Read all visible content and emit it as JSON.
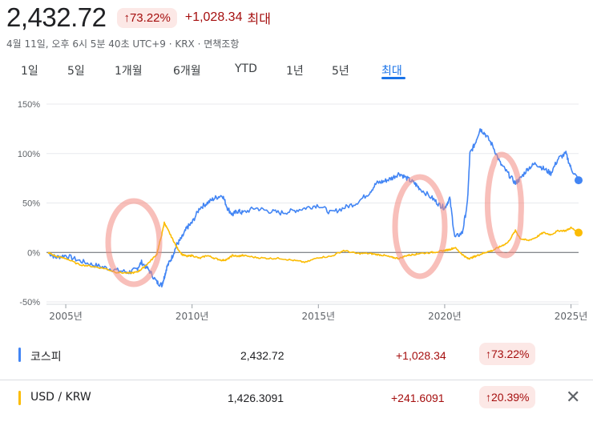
{
  "header": {
    "price": "2,432.72",
    "pct_change": "↑73.22%",
    "abs_change": "+1,028.34",
    "period_label": "최대",
    "subtitle": "4월 11일, 오후 6시 5분 40초 UTC+9 · KRX · 면책조항"
  },
  "tabs": [
    "1일",
    "5일",
    "1개월",
    "6개월",
    "YTD",
    "1년",
    "5년",
    "최대"
  ],
  "active_tab": "최대",
  "colors": {
    "kospi": "#4285f4",
    "usdkrw": "#fbbc04",
    "up": "#a50e0e",
    "accent": "#1a73e8",
    "circle": "#f28b82"
  },
  "chart_data": {
    "type": "line",
    "y_unit": "percent",
    "ylim": [
      -50,
      150
    ],
    "y_ticks": [
      "150%",
      "100%",
      "50%",
      "0%",
      "-50%"
    ],
    "xlim": [
      2004.3,
      2025.3
    ],
    "x_ticks": [
      "2005년",
      "2010년",
      "2015년",
      "2020년",
      "2025년"
    ],
    "grid": true,
    "series": [
      {
        "name": "코스피",
        "color": "#4285f4",
        "x": [
          2004.3,
          2004.6,
          2005.0,
          2005.5,
          2006.0,
          2006.5,
          2007.0,
          2007.5,
          2007.8,
          2008.0,
          2008.3,
          2008.6,
          2008.8,
          2008.9,
          2009.0,
          2009.2,
          2009.4,
          2009.6,
          2009.8,
          2010.0,
          2010.3,
          2010.6,
          2010.9,
          2011.2,
          2011.4,
          2011.6,
          2011.8,
          2012.0,
          2012.5,
          2013.0,
          2013.5,
          2014.0,
          2014.5,
          2015.0,
          2015.5,
          2016.0,
          2016.5,
          2017.0,
          2017.3,
          2017.6,
          2017.9,
          2018.2,
          2018.5,
          2018.8,
          2019.0,
          2019.5,
          2019.8,
          2020.0,
          2020.2,
          2020.4,
          2020.7,
          2020.9,
          2021.0,
          2021.2,
          2021.4,
          2021.6,
          2021.9,
          2022.2,
          2022.5,
          2022.8,
          2023.0,
          2023.3,
          2023.6,
          2023.9,
          2024.2,
          2024.5,
          2024.8,
          2025.0,
          2025.3
        ],
        "y": [
          0,
          -5,
          -3,
          -8,
          -12,
          -15,
          -18,
          -20,
          -17,
          -10,
          -18,
          -30,
          -33,
          -25,
          -15,
          -5,
          8,
          15,
          25,
          30,
          45,
          50,
          55,
          58,
          45,
          38,
          42,
          40,
          45,
          42,
          40,
          42,
          45,
          48,
          40,
          45,
          50,
          60,
          70,
          72,
          75,
          80,
          75,
          70,
          65,
          55,
          48,
          45,
          55,
          15,
          20,
          50,
          100,
          110,
          125,
          120,
          108,
          90,
          80,
          70,
          75,
          85,
          90,
          85,
          80,
          95,
          100,
          85,
          73
        ]
      },
      {
        "name": "USD / KRW",
        "color": "#fbbc04",
        "x": [
          2004.3,
          2004.6,
          2005.0,
          2005.5,
          2006.0,
          2006.5,
          2007.0,
          2007.5,
          2007.8,
          2008.0,
          2008.3,
          2008.6,
          2008.8,
          2008.9,
          2009.0,
          2009.2,
          2009.4,
          2009.6,
          2009.8,
          2010.0,
          2010.3,
          2010.6,
          2010.9,
          2011.2,
          2011.4,
          2011.6,
          2011.8,
          2012.0,
          2012.5,
          2013.0,
          2013.5,
          2014.0,
          2014.5,
          2015.0,
          2015.5,
          2016.0,
          2016.5,
          2017.0,
          2017.3,
          2017.6,
          2017.9,
          2018.2,
          2018.5,
          2018.8,
          2019.0,
          2019.5,
          2019.8,
          2020.0,
          2020.2,
          2020.4,
          2020.7,
          2020.9,
          2021.0,
          2021.2,
          2021.4,
          2021.6,
          2021.9,
          2022.2,
          2022.5,
          2022.8,
          2023.0,
          2023.3,
          2023.6,
          2023.9,
          2024.2,
          2024.5,
          2024.8,
          2025.0,
          2025.3
        ],
        "y": [
          0,
          -4,
          -6,
          -12,
          -14,
          -16,
          -20,
          -21,
          -20,
          -17,
          -10,
          -2,
          18,
          30,
          25,
          15,
          5,
          -2,
          -4,
          -3,
          -6,
          -3,
          -6,
          -8,
          -7,
          -3,
          -4,
          -3,
          -5,
          -6,
          -6,
          -8,
          -10,
          -5,
          -4,
          2,
          -1,
          -1,
          -2,
          -3,
          -5,
          -6,
          -3,
          -2,
          -1,
          0,
          1,
          2,
          3,
          5,
          -2,
          -6,
          -6,
          -4,
          -2,
          0,
          2,
          6,
          10,
          22,
          14,
          12,
          15,
          20,
          18,
          22,
          22,
          25,
          20
        ]
      }
    ]
  },
  "legend": [
    {
      "name": "코스피",
      "value": "2,432.72",
      "abs_change": "+1,028.34",
      "pct_change": "↑73.22%"
    },
    {
      "name": "USD / KRW",
      "value": "1,426.3091",
      "abs_change": "+241.6091",
      "pct_change": "↑20.39%"
    }
  ],
  "remove_icon": "close-icon"
}
